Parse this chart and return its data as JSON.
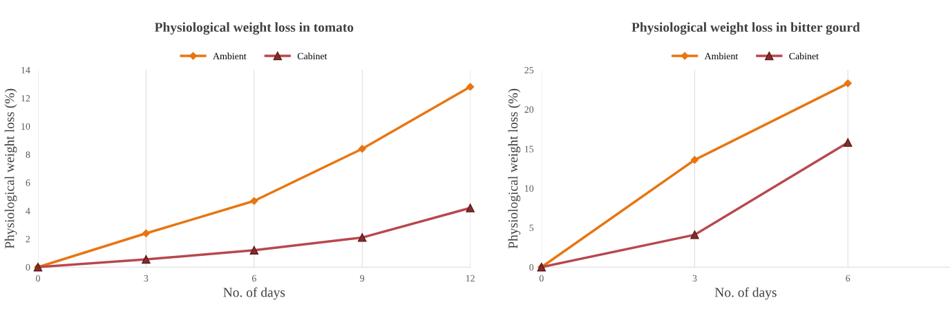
{
  "chart_data": [
    {
      "type": "line",
      "title": "Physiological weight loss in tomato",
      "xlabel": "No. of days",
      "ylabel": "Physiological weight loss (%)",
      "x": [
        0,
        3,
        6,
        9,
        12
      ],
      "xlim": [
        0,
        12
      ],
      "xticks": [
        0,
        3,
        6,
        9,
        12
      ],
      "ylim": [
        0,
        14
      ],
      "yticks": [
        0,
        2,
        4,
        6,
        8,
        10,
        12,
        14
      ],
      "grid": "x",
      "legend": "top",
      "series": [
        {
          "name": "Ambient",
          "color": "#e87511",
          "marker": "diamond",
          "values": [
            0,
            2.4,
            4.7,
            8.4,
            12.8
          ]
        },
        {
          "name": "Cabinet",
          "color": "#b8474d",
          "marker": "triangle",
          "values": [
            0,
            0.55,
            1.2,
            2.1,
            4.2
          ]
        }
      ]
    },
    {
      "type": "line",
      "title": "Physiological weight loss in bitter gourd",
      "xlabel": "No. of days",
      "ylabel": "Physiological weight loss (%)",
      "x": [
        0,
        3,
        6
      ],
      "xlim": [
        0,
        8
      ],
      "xticks": [
        0,
        3,
        6
      ],
      "ylim": [
        0,
        25
      ],
      "yticks": [
        0,
        5,
        10,
        15,
        20,
        25
      ],
      "grid": "x",
      "legend": "top",
      "series": [
        {
          "name": "Ambient",
          "color": "#e87511",
          "marker": "diamond",
          "values": [
            0,
            13.6,
            23.3
          ]
        },
        {
          "name": "Cabinet",
          "color": "#b8474d",
          "marker": "triangle",
          "values": [
            0,
            4.1,
            15.8
          ]
        }
      ]
    }
  ]
}
